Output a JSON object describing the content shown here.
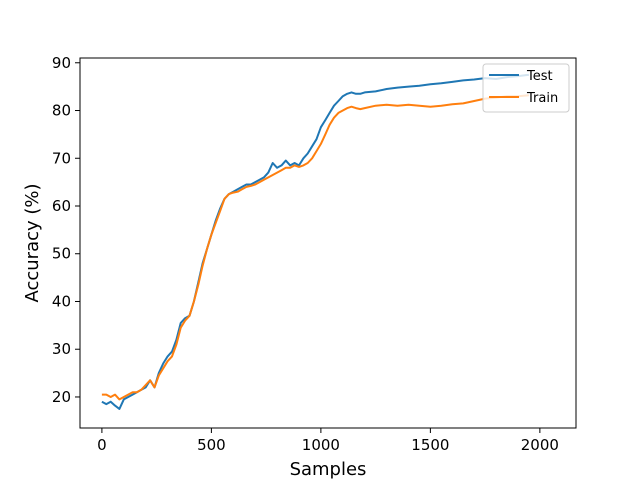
{
  "chart_data": {
    "type": "line",
    "title": "",
    "xlabel": "Samples",
    "ylabel": "Accuracy (%)",
    "xlim": [
      -100,
      2165
    ],
    "ylim": [
      13.5,
      91
    ],
    "xticks": [
      0,
      500,
      1000,
      1500,
      2000
    ],
    "yticks": [
      20,
      30,
      40,
      50,
      60,
      70,
      80,
      90
    ],
    "grid": false,
    "legend_position": "top-right",
    "series": [
      {
        "name": "Test",
        "color": "#1f77b4",
        "x": [
          0,
          20,
          40,
          60,
          80,
          100,
          120,
          140,
          160,
          180,
          200,
          220,
          240,
          260,
          280,
          300,
          320,
          340,
          360,
          380,
          400,
          420,
          440,
          460,
          480,
          500,
          520,
          540,
          560,
          580,
          600,
          620,
          640,
          660,
          680,
          700,
          720,
          740,
          760,
          780,
          800,
          820,
          840,
          860,
          880,
          900,
          920,
          940,
          960,
          980,
          1000,
          1020,
          1040,
          1060,
          1080,
          1100,
          1120,
          1140,
          1160,
          1180,
          1200,
          1250,
          1300,
          1350,
          1400,
          1450,
          1500,
          1550,
          1600,
          1650,
          1700,
          1750,
          1800,
          1850,
          1900,
          1950
        ],
        "y": [
          19.0,
          18.5,
          19.0,
          18.2,
          17.5,
          19.5,
          20.0,
          20.5,
          21.0,
          21.5,
          22.0,
          23.5,
          22.0,
          25.0,
          27.0,
          28.5,
          29.5,
          32.0,
          35.5,
          36.5,
          37.0,
          40.0,
          44.0,
          48.0,
          51.0,
          54.0,
          57.0,
          59.5,
          61.5,
          62.5,
          63.0,
          63.5,
          64.0,
          64.5,
          64.5,
          65.0,
          65.5,
          66.0,
          67.0,
          69.0,
          68.0,
          68.5,
          69.5,
          68.5,
          69.0,
          68.5,
          70.0,
          71.0,
          72.5,
          74.0,
          76.5,
          78.0,
          79.5,
          81.0,
          82.0,
          83.0,
          83.5,
          83.8,
          83.5,
          83.5,
          83.8,
          84.0,
          84.5,
          84.8,
          85.0,
          85.2,
          85.5,
          85.7,
          86.0,
          86.3,
          86.5,
          86.8,
          86.6,
          87.0,
          87.2,
          87.5
        ]
      },
      {
        "name": "Train",
        "color": "#ff7f0e",
        "x": [
          0,
          20,
          40,
          60,
          80,
          100,
          120,
          140,
          160,
          180,
          200,
          220,
          240,
          260,
          280,
          300,
          320,
          340,
          360,
          380,
          400,
          420,
          440,
          460,
          480,
          500,
          520,
          540,
          560,
          580,
          600,
          620,
          640,
          660,
          680,
          700,
          720,
          740,
          760,
          780,
          800,
          820,
          840,
          860,
          880,
          900,
          920,
          940,
          960,
          980,
          1000,
          1020,
          1040,
          1060,
          1080,
          1100,
          1120,
          1140,
          1160,
          1180,
          1200,
          1250,
          1300,
          1350,
          1400,
          1450,
          1500,
          1550,
          1600,
          1650,
          1700,
          1750,
          1800,
          1850,
          1900,
          1950
        ],
        "y": [
          20.5,
          20.5,
          20.0,
          20.5,
          19.5,
          20.0,
          20.5,
          21.0,
          21.0,
          21.5,
          22.5,
          23.5,
          22.0,
          24.5,
          26.0,
          27.5,
          28.5,
          31.0,
          34.5,
          36.0,
          37.0,
          40.0,
          43.5,
          47.5,
          51.0,
          54.0,
          56.5,
          59.0,
          61.5,
          62.5,
          62.8,
          63.0,
          63.5,
          64.0,
          64.2,
          64.5,
          65.0,
          65.5,
          66.0,
          66.5,
          67.0,
          67.5,
          68.0,
          68.0,
          68.5,
          68.2,
          68.5,
          69.0,
          70.0,
          71.5,
          73.0,
          75.0,
          77.0,
          78.5,
          79.5,
          80.0,
          80.5,
          80.8,
          80.5,
          80.3,
          80.5,
          81.0,
          81.2,
          81.0,
          81.2,
          81.0,
          80.8,
          81.0,
          81.3,
          81.5,
          82.0,
          82.5,
          82.7,
          83.0,
          83.0,
          83.2
        ]
      }
    ]
  }
}
